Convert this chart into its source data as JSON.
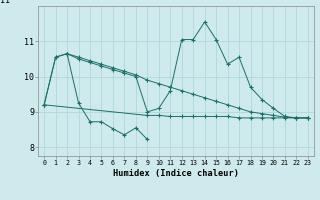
{
  "x": [
    0,
    1,
    2,
    3,
    4,
    5,
    6,
    7,
    8,
    9,
    10,
    11,
    12,
    13,
    14,
    15,
    16,
    17,
    18,
    19,
    20,
    21,
    22,
    23
  ],
  "line_high": [
    9.2,
    10.55,
    10.65,
    10.55,
    10.45,
    10.35,
    10.25,
    10.15,
    10.05,
    9.9,
    9.8,
    9.7,
    9.6,
    9.5,
    9.4,
    9.3,
    9.2,
    9.1,
    9.0,
    8.95,
    8.9,
    8.85,
    8.83,
    8.83
  ],
  "line_mid": [
    9.2,
    10.55,
    10.65,
    10.5,
    10.4,
    10.3,
    10.2,
    10.1,
    10.0,
    9.0,
    9.1,
    9.6,
    11.05,
    11.05,
    11.55,
    11.05,
    10.35,
    10.55,
    9.7,
    9.35,
    9.1,
    8.87,
    8.83,
    8.83
  ],
  "line_low": [
    null,
    null,
    10.65,
    9.25,
    8.72,
    8.72,
    8.52,
    8.35,
    8.55,
    8.22,
    null,
    null,
    null,
    null,
    null,
    null,
    null,
    null,
    null,
    null,
    null,
    null,
    null,
    null
  ],
  "line_flat": [
    9.2,
    null,
    null,
    null,
    null,
    null,
    null,
    null,
    null,
    8.9,
    8.9,
    8.87,
    8.87,
    8.87,
    8.87,
    8.87,
    8.87,
    8.83,
    8.83,
    8.83,
    8.83,
    8.83,
    8.83,
    8.83
  ],
  "bg_color": "#ceeaec",
  "line_color": "#197068",
  "grid_color": "#b0d8da",
  "xlabel": "Humidex (Indice chaleur)",
  "ylim": [
    7.75,
    12.0
  ],
  "xlim": [
    -0.5,
    23.5
  ],
  "yticks": [
    8,
    9,
    10,
    11
  ],
  "ytick_labels": [
    "8",
    "9",
    "10",
    "11"
  ],
  "xticks": [
    0,
    1,
    2,
    3,
    4,
    5,
    6,
    7,
    8,
    9,
    10,
    11,
    12,
    13,
    14,
    15,
    16,
    17,
    18,
    19,
    20,
    21,
    22,
    23
  ],
  "figsize": [
    3.2,
    2.0
  ],
  "dpi": 100
}
